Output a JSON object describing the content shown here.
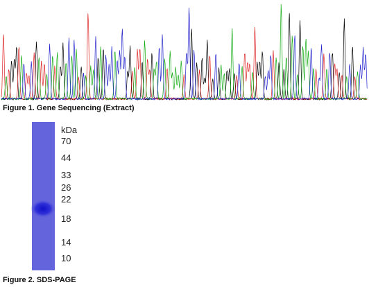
{
  "figure1": {
    "caption": "Figure 1. Gene Sequencing (Extract)"
  },
  "figure2": {
    "caption": "Figure 2. SDS-PAGE",
    "unit_label": "kDa",
    "markers": [
      "70",
      "44",
      "33",
      "26",
      "22",
      "18",
      "14",
      "10"
    ]
  }
}
